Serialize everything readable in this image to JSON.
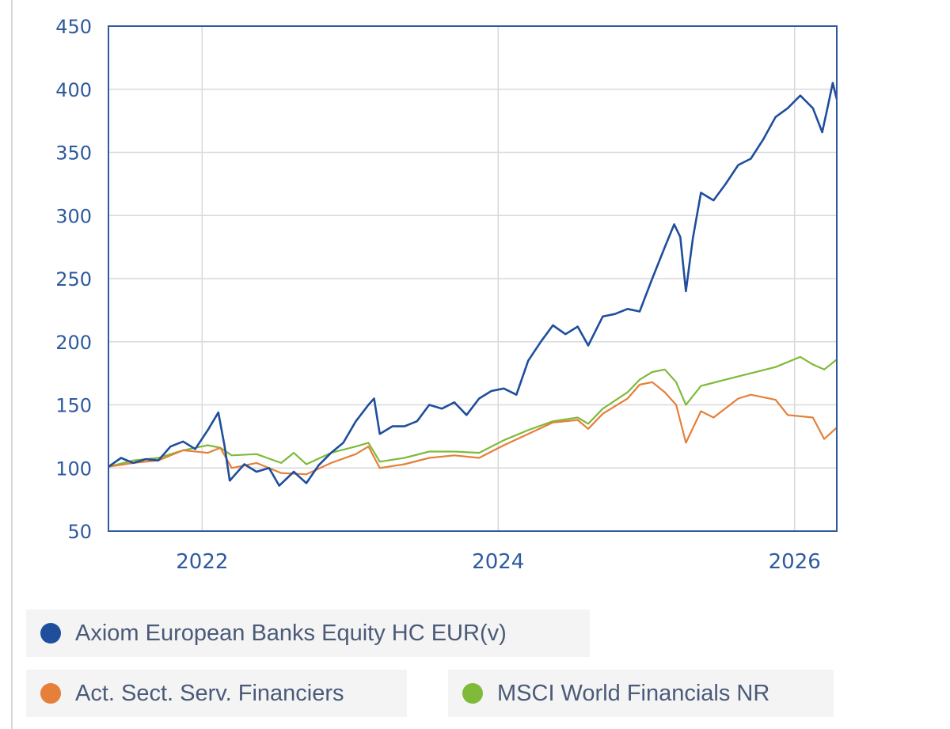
{
  "chart_data": {
    "type": "line",
    "title": "",
    "xlabel": "",
    "ylabel": "",
    "x_ticks": [
      "2022",
      "2024",
      "2026"
    ],
    "y_ticks": [
      450,
      400,
      350,
      300,
      250,
      200,
      150,
      100,
      50
    ],
    "ylim": [
      50,
      450
    ],
    "xlim": [
      "2021-05-15",
      "2026-04-15"
    ],
    "grid": true,
    "legend_position": "bottom",
    "series": [
      {
        "name": "Axiom European Banks Equity HC EUR(v)",
        "color": "#1f4e9c",
        "points": [
          [
            "2021-05-15",
            101
          ],
          [
            "2021-06-15",
            108
          ],
          [
            "2021-07-15",
            104
          ],
          [
            "2021-08-15",
            107
          ],
          [
            "2021-09-15",
            106
          ],
          [
            "2021-10-15",
            117
          ],
          [
            "2021-11-15",
            121
          ],
          [
            "2021-12-15",
            115
          ],
          [
            "2022-01-15",
            130
          ],
          [
            "2022-02-10",
            144
          ],
          [
            "2022-02-25",
            118
          ],
          [
            "2022-03-10",
            90
          ],
          [
            "2022-04-15",
            103
          ],
          [
            "2022-05-15",
            97
          ],
          [
            "2022-06-15",
            100
          ],
          [
            "2022-07-10",
            86
          ],
          [
            "2022-08-15",
            97
          ],
          [
            "2022-09-15",
            88
          ],
          [
            "2022-10-15",
            102
          ],
          [
            "2022-11-15",
            112
          ],
          [
            "2022-12-15",
            120
          ],
          [
            "2023-01-15",
            137
          ],
          [
            "2023-02-15",
            150
          ],
          [
            "2023-03-01",
            155
          ],
          [
            "2023-03-15",
            127
          ],
          [
            "2023-04-15",
            133
          ],
          [
            "2023-05-15",
            133
          ],
          [
            "2023-06-15",
            137
          ],
          [
            "2023-07-15",
            150
          ],
          [
            "2023-08-15",
            147
          ],
          [
            "2023-09-15",
            152
          ],
          [
            "2023-10-15",
            142
          ],
          [
            "2023-11-15",
            155
          ],
          [
            "2023-12-15",
            161
          ],
          [
            "2024-01-15",
            163
          ],
          [
            "2024-02-15",
            158
          ],
          [
            "2024-03-15",
            185
          ],
          [
            "2024-04-15",
            200
          ],
          [
            "2024-05-15",
            213
          ],
          [
            "2024-06-15",
            206
          ],
          [
            "2024-07-15",
            212
          ],
          [
            "2024-08-10",
            197
          ],
          [
            "2024-09-15",
            220
          ],
          [
            "2024-10-15",
            222
          ],
          [
            "2024-11-15",
            226
          ],
          [
            "2024-12-15",
            224
          ],
          [
            "2025-01-15",
            250
          ],
          [
            "2025-02-15",
            275
          ],
          [
            "2025-03-10",
            293
          ],
          [
            "2025-03-25",
            283
          ],
          [
            "2025-04-08",
            240
          ],
          [
            "2025-04-25",
            282
          ],
          [
            "2025-05-15",
            318
          ],
          [
            "2025-06-15",
            312
          ],
          [
            "2025-07-15",
            325
          ],
          [
            "2025-08-15",
            340
          ],
          [
            "2025-09-15",
            345
          ],
          [
            "2025-10-15",
            360
          ],
          [
            "2025-11-15",
            378
          ],
          [
            "2025-12-15",
            385
          ],
          [
            "2026-01-15",
            395
          ],
          [
            "2026-02-15",
            385
          ],
          [
            "2026-03-10",
            366
          ],
          [
            "2026-03-25",
            388
          ],
          [
            "2026-04-05",
            405
          ],
          [
            "2026-04-15",
            392
          ]
        ]
      },
      {
        "name": "Act. Sect. Serv. Financiers",
        "color": "#e57f3a",
        "points": [
          [
            "2021-05-15",
            101
          ],
          [
            "2021-07-15",
            104
          ],
          [
            "2021-09-15",
            106
          ],
          [
            "2021-11-15",
            114
          ],
          [
            "2022-01-15",
            112
          ],
          [
            "2022-02-15",
            116
          ],
          [
            "2022-03-15",
            100
          ],
          [
            "2022-05-15",
            104
          ],
          [
            "2022-07-15",
            96
          ],
          [
            "2022-09-15",
            95
          ],
          [
            "2022-11-15",
            104
          ],
          [
            "2023-01-15",
            111
          ],
          [
            "2023-02-15",
            117
          ],
          [
            "2023-03-15",
            100
          ],
          [
            "2023-05-15",
            103
          ],
          [
            "2023-07-15",
            108
          ],
          [
            "2023-09-15",
            110
          ],
          [
            "2023-11-15",
            108
          ],
          [
            "2024-01-15",
            118
          ],
          [
            "2024-03-15",
            127
          ],
          [
            "2024-05-15",
            136
          ],
          [
            "2024-07-15",
            138
          ],
          [
            "2024-08-10",
            131
          ],
          [
            "2024-09-15",
            143
          ],
          [
            "2024-11-15",
            155
          ],
          [
            "2024-12-15",
            166
          ],
          [
            "2025-01-15",
            168
          ],
          [
            "2025-02-15",
            160
          ],
          [
            "2025-03-15",
            150
          ],
          [
            "2025-04-08",
            120
          ],
          [
            "2025-05-15",
            145
          ],
          [
            "2025-06-15",
            140
          ],
          [
            "2025-08-15",
            155
          ],
          [
            "2025-09-15",
            158
          ],
          [
            "2025-11-15",
            154
          ],
          [
            "2025-12-15",
            142
          ],
          [
            "2026-02-15",
            140
          ],
          [
            "2026-03-15",
            123
          ],
          [
            "2026-04-15",
            132
          ]
        ]
      },
      {
        "name": "MSCI World Financials NR",
        "color": "#7fba3a",
        "points": [
          [
            "2021-05-15",
            101
          ],
          [
            "2021-07-15",
            106
          ],
          [
            "2021-09-15",
            108
          ],
          [
            "2021-11-15",
            114
          ],
          [
            "2022-01-15",
            118
          ],
          [
            "2022-02-15",
            116
          ],
          [
            "2022-03-15",
            110
          ],
          [
            "2022-05-15",
            111
          ],
          [
            "2022-07-15",
            104
          ],
          [
            "2022-08-15",
            112
          ],
          [
            "2022-09-15",
            103
          ],
          [
            "2022-11-15",
            112
          ],
          [
            "2023-01-15",
            117
          ],
          [
            "2023-02-15",
            120
          ],
          [
            "2023-03-15",
            105
          ],
          [
            "2023-05-15",
            108
          ],
          [
            "2023-07-15",
            113
          ],
          [
            "2023-09-15",
            113
          ],
          [
            "2023-11-15",
            112
          ],
          [
            "2024-01-15",
            122
          ],
          [
            "2024-03-15",
            130
          ],
          [
            "2024-05-15",
            137
          ],
          [
            "2024-07-15",
            140
          ],
          [
            "2024-08-10",
            135
          ],
          [
            "2024-09-15",
            147
          ],
          [
            "2024-11-15",
            160
          ],
          [
            "2024-12-15",
            170
          ],
          [
            "2025-01-15",
            176
          ],
          [
            "2025-02-15",
            178
          ],
          [
            "2025-03-15",
            168
          ],
          [
            "2025-04-08",
            150
          ],
          [
            "2025-05-15",
            165
          ],
          [
            "2025-07-15",
            170
          ],
          [
            "2025-09-15",
            175
          ],
          [
            "2025-11-15",
            180
          ],
          [
            "2026-01-15",
            188
          ],
          [
            "2026-02-15",
            182
          ],
          [
            "2026-03-15",
            178
          ],
          [
            "2026-04-15",
            186
          ]
        ]
      }
    ]
  },
  "legend": [
    {
      "label": "Axiom European Banks Equity HC EUR(v)",
      "color": "#1f4e9c"
    },
    {
      "label": "Act. Sect. Serv. Financiers",
      "color": "#e57f3a"
    },
    {
      "label": "MSCI World Financials NR",
      "color": "#7fba3a"
    }
  ]
}
